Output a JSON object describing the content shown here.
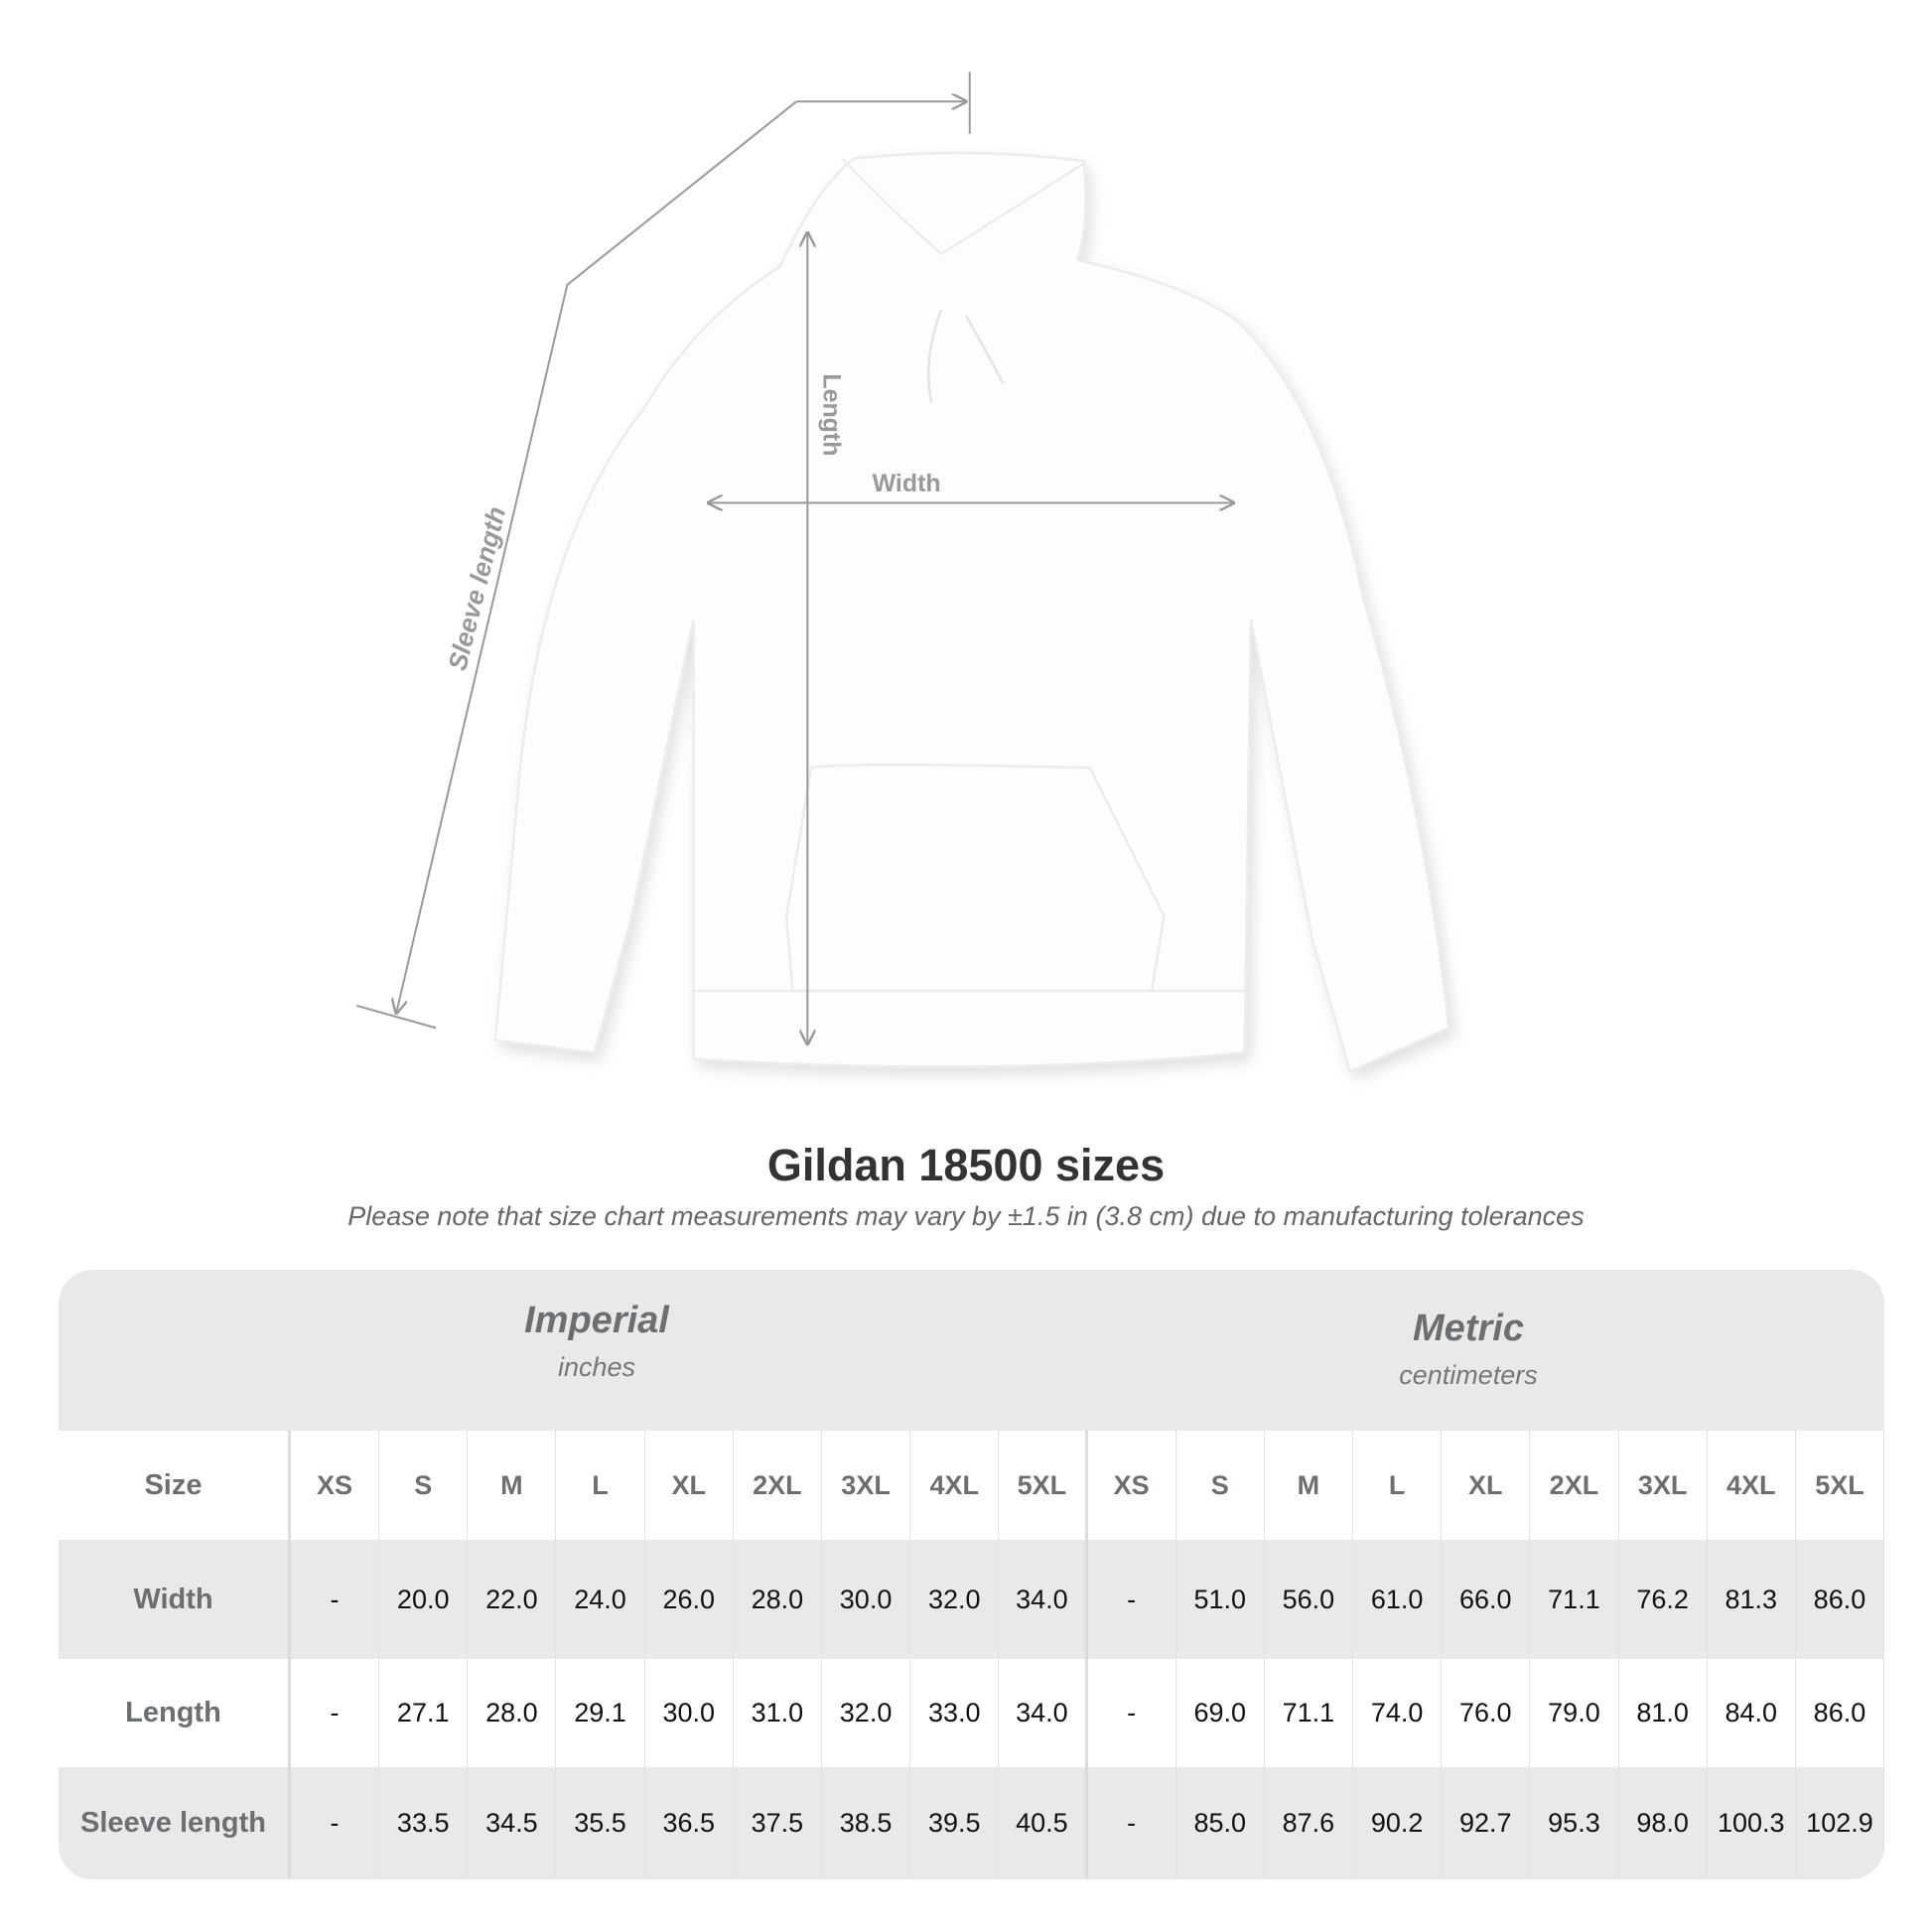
{
  "diagram": {
    "width_label": "Width",
    "length_label": "Length",
    "sleeve_label": "Sleeve length"
  },
  "title": "Gildan 18500 sizes",
  "note": "Please note that size chart measurements may vary by ±1.5 in (3.8 cm) due to manufacturing tolerances",
  "imperial": {
    "name": "Imperial",
    "unit": "inches"
  },
  "metric": {
    "name": "Metric",
    "unit": "centimeters"
  },
  "size_label": "Size",
  "sizes": [
    "XS",
    "S",
    "M",
    "L",
    "XL",
    "2XL",
    "3XL",
    "4XL",
    "5XL"
  ],
  "rows": [
    {
      "label": "Width",
      "imperial": [
        "-",
        "20.0",
        "22.0",
        "24.0",
        "26.0",
        "28.0",
        "30.0",
        "32.0",
        "34.0"
      ],
      "metric": [
        "-",
        "51.0",
        "56.0",
        "61.0",
        "66.0",
        "71.1",
        "76.2",
        "81.3",
        "86.0"
      ]
    },
    {
      "label": "Length",
      "imperial": [
        "-",
        "27.1",
        "28.0",
        "29.1",
        "30.0",
        "31.0",
        "32.0",
        "33.0",
        "34.0"
      ],
      "metric": [
        "-",
        "69.0",
        "71.1",
        "74.0",
        "76.0",
        "79.0",
        "81.0",
        "84.0",
        "86.0"
      ]
    },
    {
      "label": "Sleeve length",
      "imperial": [
        "-",
        "33.5",
        "34.5",
        "35.5",
        "36.5",
        "37.5",
        "38.5",
        "39.5",
        "40.5"
      ],
      "metric": [
        "-",
        "85.0",
        "87.6",
        "90.2",
        "92.7",
        "95.3",
        "98.0",
        "100.3",
        "102.9"
      ]
    }
  ],
  "colors": {
    "header_bg": "#e9e9e9",
    "label_text": "#6b6f72",
    "line": "#999999"
  }
}
